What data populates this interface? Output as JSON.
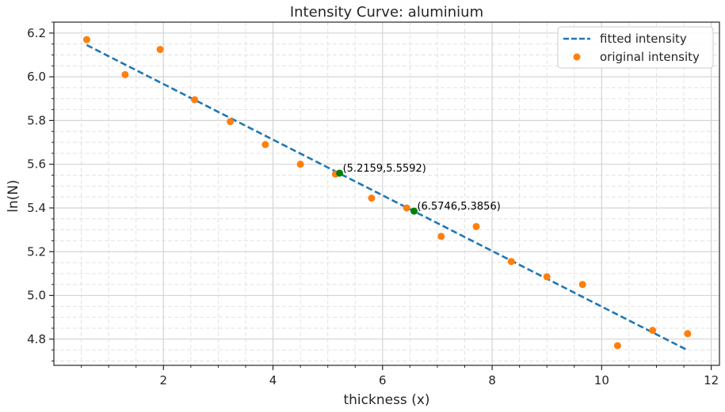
{
  "chart_data": {
    "type": "scatter",
    "title": "Intensity Curve: aluminium",
    "xlabel": "thickness (x)",
    "ylabel": "ln(N)",
    "xlim": [
      0.0,
      12.15
    ],
    "ylim": [
      4.68,
      6.25
    ],
    "xticks": [
      2,
      4,
      6,
      8,
      10,
      12
    ],
    "yticks": [
      4.8,
      5.0,
      5.2,
      5.4,
      5.6,
      5.8,
      6.0,
      6.2
    ],
    "xtick_labels": [
      "2",
      "4",
      "6",
      "8",
      "10",
      "12"
    ],
    "ytick_labels": [
      "4.8",
      "5.0",
      "5.2",
      "5.4",
      "5.6",
      "5.8",
      "6.0",
      "6.2"
    ],
    "grid": true,
    "minor_grid": true,
    "legend_position": "top-right",
    "series": [
      {
        "name": "fitted intensity",
        "kind": "line",
        "style": "dashed",
        "color": "#1f77b4",
        "x": [
          0.6,
          11.57
        ],
        "y": [
          6.145,
          4.749
        ]
      },
      {
        "name": "original intensity",
        "kind": "scatter",
        "color": "#ff7f0e",
        "x": [
          0.6,
          1.3,
          1.94,
          2.57,
          3.22,
          3.86,
          4.5,
          5.14,
          5.8,
          6.44,
          7.07,
          7.71,
          8.35,
          9.0,
          9.65,
          10.29,
          10.93,
          11.57
        ],
        "y": [
          6.17,
          6.01,
          6.125,
          5.895,
          5.795,
          5.69,
          5.6,
          5.555,
          5.445,
          5.4,
          5.27,
          5.315,
          5.155,
          5.085,
          5.05,
          4.77,
          4.84,
          4.825
        ]
      }
    ],
    "highlighted_points": {
      "color": "#008000",
      "points": [
        {
          "x": 5.2159,
          "y": 5.5592,
          "label": "(5.2159,5.5592)"
        },
        {
          "x": 6.5746,
          "y": 5.3856,
          "label": "(6.5746,5.3856)"
        }
      ]
    },
    "colors": {
      "grid_major": "#d4d4d4",
      "grid_minor": "#e2e2e2",
      "axis": "#262626"
    }
  }
}
